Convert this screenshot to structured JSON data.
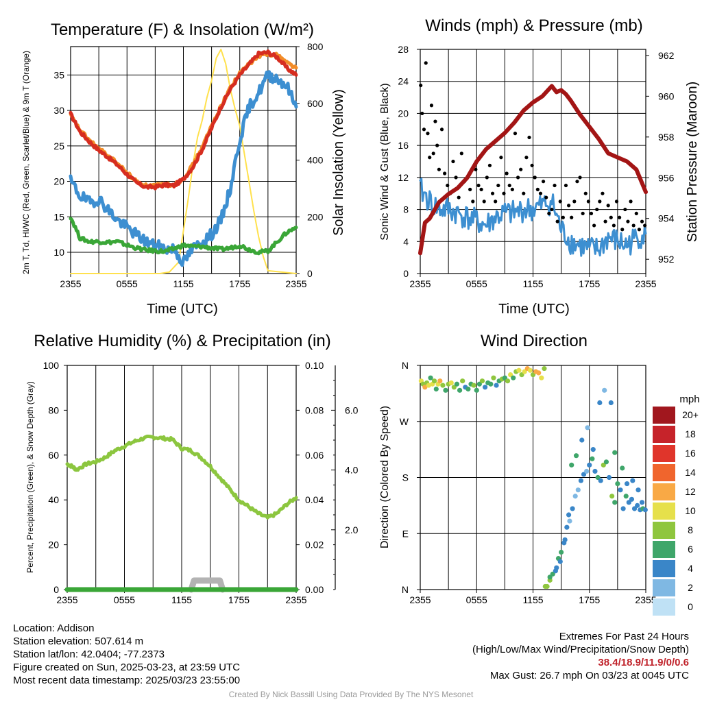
{
  "colors": {
    "red": "#d62d20",
    "orange": "#f28c28",
    "blue": "#3d8fd1",
    "green": "#3aa637",
    "yellow": "#ffe14d",
    "black": "#000000",
    "maroon": "#a31515",
    "rh_green": "#8cc63f",
    "gray": "#b3b3b3"
  },
  "speed_colorbar": {
    "unit": "mph",
    "labels": [
      "20+",
      "18",
      "16",
      "14",
      "12",
      "10",
      "8",
      "6",
      "4",
      "2",
      "0"
    ],
    "colors": [
      "#a1171e",
      "#c6232a",
      "#e0352b",
      "#f0652d",
      "#f9a945",
      "#e6e04b",
      "#8fc63e",
      "#3fa66a",
      "#3a86c8",
      "#7fb8e3",
      "#bfe1f5"
    ]
  },
  "chart_data": [
    {
      "type": "line",
      "title": "Temperature (F) & Insolation (W/m²)",
      "xlabel": "Time (UTC)",
      "ylabel": "2m T, Td, HI/WC (Red, Green, Scarlet/Blue) & 9m T (Orange)",
      "y2label": "Solar Insolation (Yellow)",
      "x_ticks": [
        "2355",
        "0555",
        "1155",
        "1755",
        "2355"
      ],
      "xlim": [
        0,
        24
      ],
      "ylim": [
        7,
        39
      ],
      "y2lim": [
        0,
        800
      ],
      "y_ticks": [
        10,
        15,
        20,
        25,
        30,
        35
      ],
      "y2_ticks": [
        0,
        200,
        400,
        600,
        800
      ],
      "grid": true,
      "series": [
        {
          "color_key": "red",
          "x": [
            0,
            1,
            2,
            3,
            4,
            5,
            6,
            7,
            8,
            9,
            10,
            11,
            12,
            13,
            14,
            15,
            16,
            17,
            18,
            19,
            20,
            21,
            22,
            23,
            24
          ],
          "y": [
            29.5,
            27.0,
            25.6,
            24.4,
            23.4,
            22.3,
            21.0,
            19.8,
            19.2,
            19.2,
            19.5,
            19.4,
            20.3,
            22.0,
            24.5,
            27.5,
            30.5,
            33.0,
            35.0,
            36.5,
            38.0,
            38.2,
            37.5,
            36.0,
            35.0
          ]
        },
        {
          "color_key": "orange",
          "x": [
            0,
            1,
            2,
            3,
            4,
            5,
            6,
            7,
            8,
            9,
            10,
            11,
            12,
            13,
            14,
            15,
            16,
            17,
            18,
            19,
            20,
            21,
            22,
            23,
            24
          ],
          "y": [
            29.3,
            27.2,
            25.8,
            24.6,
            23.6,
            22.5,
            21.2,
            20.0,
            19.4,
            19.4,
            19.6,
            19.5,
            20.4,
            22.3,
            24.8,
            27.8,
            30.6,
            33.2,
            35.2,
            36.6,
            37.6,
            38.0,
            37.8,
            36.8,
            36.0
          ]
        },
        {
          "color_key": "blue",
          "x": [
            0,
            1,
            2,
            3,
            4,
            5,
            6,
            7,
            8,
            9,
            10,
            11,
            12,
            13,
            14,
            15,
            16,
            17,
            18,
            19,
            20,
            21,
            22,
            23,
            24
          ],
          "y": [
            20.0,
            18.0,
            17.0,
            17.5,
            16.0,
            14.5,
            13.5,
            12.5,
            11.5,
            11.0,
            10.5,
            10.5,
            8.5,
            10.5,
            11.5,
            12.5,
            14.5,
            19.0,
            26.0,
            30.5,
            32.5,
            35.0,
            34.5,
            33.5,
            30.5
          ]
        },
        {
          "color_key": "green",
          "x": [
            0,
            1,
            2,
            3,
            4,
            5,
            6,
            7,
            8,
            9,
            10,
            11,
            12,
            13,
            14,
            15,
            16,
            17,
            18,
            19,
            20,
            21,
            22,
            23,
            24
          ],
          "y": [
            15.0,
            12.0,
            11.5,
            11.5,
            11.4,
            11.5,
            11.0,
            10.6,
            10.3,
            10.2,
            10.1,
            10.5,
            11.0,
            10.8,
            10.8,
            10.6,
            10.4,
            10.6,
            11.0,
            10.4,
            10.0,
            10.2,
            11.5,
            12.8,
            13.5
          ]
        },
        {
          "color_key": "yellow",
          "axis": "y2",
          "x": [
            0,
            9.5,
            10.5,
            11.5,
            12.0,
            12.5,
            13.0,
            13.5,
            14.0,
            14.5,
            15.0,
            15.5,
            16.0,
            16.5,
            17.0,
            17.5,
            18.0,
            18.5,
            19.0,
            19.5,
            20.0,
            20.5,
            21.0,
            24
          ],
          "y": [
            0,
            0,
            5,
            40,
            150,
            260,
            380,
            480,
            540,
            620,
            680,
            760,
            790,
            740,
            650,
            580,
            520,
            420,
            320,
            220,
            130,
            60,
            10,
            0
          ]
        }
      ]
    },
    {
      "type": "line",
      "title": "Winds (mph) & Pressure (mb)",
      "xlabel": "Time (UTC)",
      "ylabel": "Sonic Wind & Gust (Blue, Black)",
      "y2label": "Station Pressure (Maroon)",
      "x_ticks": [
        "2355",
        "0555",
        "1155",
        "1755",
        "2355"
      ],
      "xlim": [
        0,
        24
      ],
      "ylim": [
        0,
        28
      ],
      "y2lim": [
        951.3,
        962.3
      ],
      "y_ticks": [
        0,
        4,
        8,
        12,
        16,
        20,
        24,
        28
      ],
      "y2_ticks": [
        952,
        954,
        956,
        958,
        960,
        962
      ],
      "grid": true,
      "series": [
        {
          "color_key": "blue",
          "x": [
            0,
            1,
            2,
            3,
            4,
            5,
            6,
            7,
            8,
            9,
            10,
            11,
            12,
            13,
            14,
            15,
            16,
            17,
            18,
            19,
            20,
            21,
            22,
            23,
            24
          ],
          "y": [
            10.5,
            9.0,
            8.0,
            8.0,
            7.5,
            7.0,
            6.5,
            6.0,
            7.0,
            7.5,
            7.5,
            8.0,
            8.0,
            8.5,
            9.0,
            5.5,
            4.0,
            3.5,
            3.0,
            3.0,
            4.5,
            4.0,
            3.5,
            4.5,
            5.0
          ]
        },
        {
          "color_key": "maroon",
          "axis": "y2",
          "x": [
            0,
            0.5,
            1,
            2,
            3,
            4,
            5,
            6,
            7,
            8,
            9,
            10,
            11,
            12,
            13,
            14,
            14.5,
            15,
            15.5,
            16,
            17,
            18,
            19,
            20,
            21,
            22,
            23,
            24
          ],
          "y": [
            952.3,
            953.8,
            954.0,
            954.8,
            955.2,
            955.5,
            956.0,
            956.8,
            957.4,
            957.8,
            958.2,
            958.7,
            959.3,
            959.7,
            960.0,
            960.5,
            960.2,
            960.3,
            960.1,
            959.8,
            959.1,
            958.5,
            957.9,
            957.2,
            957.0,
            956.8,
            956.4,
            955.3
          ]
        }
      ],
      "scatter_gust": {
        "color_key": "black",
        "x": [
          0.05,
          0.2,
          0.4,
          0.6,
          0.8,
          1.0,
          1.2,
          1.4,
          1.6,
          1.8,
          2.0,
          2.3,
          2.6,
          2.9,
          3.2,
          3.5,
          3.8,
          4.1,
          4.4,
          4.7,
          5.0,
          5.3,
          5.6,
          5.9,
          6.2,
          6.5,
          6.8,
          7.1,
          7.4,
          7.7,
          8.0,
          8.3,
          8.6,
          8.9,
          9.2,
          9.5,
          9.8,
          10.1,
          10.4,
          10.7,
          11.0,
          11.3,
          11.6,
          11.9,
          12.2,
          12.5,
          12.8,
          13.1,
          13.4,
          13.7,
          14.0,
          14.3,
          14.6,
          14.9,
          15.2,
          15.5,
          15.8,
          16.1,
          16.4,
          16.7,
          17.0,
          17.3,
          17.6,
          17.9,
          18.2,
          18.5,
          18.8,
          19.1,
          19.4,
          19.7,
          20.0,
          20.3,
          20.6,
          20.9,
          21.2,
          21.5,
          21.8,
          22.1,
          22.4,
          22.7,
          23.0,
          23.3,
          23.6,
          23.9
        ],
        "y": [
          23.5,
          20.0,
          18.0,
          26.3,
          17.5,
          14.5,
          21.0,
          15.0,
          19.0,
          16.0,
          13.0,
          18.0,
          12.5,
          11.0,
          10.0,
          14.0,
          12.0,
          9.5,
          15.0,
          11.5,
          12.0,
          10.5,
          9.0,
          13.0,
          11.0,
          10.5,
          9.0,
          12.0,
          13.5,
          10.0,
          9.0,
          11.0,
          14.5,
          10.0,
          12.5,
          11.0,
          10.5,
          17.5,
          12.0,
          13.0,
          10.0,
          14.5,
          17.0,
          13.5,
          12.0,
          10.5,
          10.0,
          11.5,
          9.5,
          7.5,
          8.0,
          11.0,
          6.5,
          9.0,
          7.0,
          11.0,
          8.5,
          7.0,
          9.0,
          11.5,
          12.0,
          7.5,
          10.0,
          9.0,
          7.5,
          6.0,
          8.0,
          9.0,
          10.0,
          6.5,
          8.5,
          7.0,
          6.0,
          9.0,
          7.0,
          5.5,
          8.0,
          6.5,
          9.0,
          6.0,
          7.5,
          5.5,
          6.5,
          6.0
        ]
      }
    },
    {
      "type": "line",
      "title": "Relative Humidity (%) & Precipitation (in)",
      "ylabel": "Percent, Precipitation (Green), & Snow Depth (Gray)",
      "x_ticks": [
        "2355",
        "0555",
        "1155",
        "1755",
        "2355"
      ],
      "xlim": [
        0,
        24
      ],
      "ylim": [
        0,
        100
      ],
      "y2lim": [
        0,
        0.1
      ],
      "y3lim": [
        0,
        7.5
      ],
      "y_ticks": [
        0,
        20,
        40,
        60,
        80,
        100
      ],
      "y2_ticks": [
        "0.00",
        "0.02",
        "0.04",
        "0.06",
        "0.08",
        "0.10"
      ],
      "y3_ticks": [
        "2.0",
        "4.0",
        "6.0"
      ],
      "grid": true,
      "series": [
        {
          "name": "",
          "color_key": "rh_green",
          "x": [
            0,
            0.5,
            1,
            2,
            3,
            4,
            5,
            6,
            7,
            8,
            9,
            10,
            11,
            12,
            13,
            14,
            15,
            16,
            17,
            18,
            19,
            20,
            21,
            22,
            23,
            24
          ],
          "y": [
            56.0,
            55.0,
            53.5,
            56.0,
            57.0,
            59.0,
            62.0,
            64.0,
            66.0,
            67.5,
            68.0,
            67.5,
            67.0,
            63.0,
            62.0,
            59.0,
            55.0,
            50.0,
            45.0,
            40.0,
            37.0,
            34.0,
            32.0,
            34.0,
            38.0,
            41.0
          ]
        },
        {
          "color_key": "green",
          "x": [
            0,
            24
          ],
          "y": [
            0,
            0
          ]
        },
        {
          "color_key": "gray",
          "x": [
            13.0,
            13.3,
            16.0,
            16.3
          ],
          "y": [
            0.0,
            0.3,
            0.3,
            0.0
          ]
        }
      ]
    },
    {
      "type": "scatter",
      "title": "Wind Direction",
      "ylabel": "Direction (Colored By Speed)",
      "x_ticks": [
        "2355",
        "0555",
        "1155",
        "1755",
        "2355"
      ],
      "y_ticks": [
        "N",
        "E",
        "S",
        "W",
        "N"
      ],
      "xlim": [
        0,
        24
      ],
      "ylim": [
        0,
        360
      ],
      "grid": true,
      "points": {
        "x": [
          0.1,
          0.3,
          0.5,
          0.7,
          0.9,
          1.1,
          1.3,
          1.5,
          1.7,
          1.9,
          2.1,
          2.4,
          2.7,
          3.0,
          3.3,
          3.6,
          3.9,
          4.2,
          4.5,
          4.8,
          5.1,
          5.4,
          5.7,
          6.0,
          6.3,
          6.6,
          6.9,
          7.2,
          7.5,
          7.8,
          8.1,
          8.4,
          8.7,
          9.0,
          9.3,
          9.6,
          9.9,
          10.2,
          10.5,
          10.8,
          11.1,
          11.4,
          11.7,
          12.0,
          12.3,
          12.6,
          12.9,
          13.2,
          13.5,
          13.8,
          14.1,
          14.4,
          14.7,
          15.0,
          15.3,
          15.6,
          15.9,
          16.2,
          16.5,
          16.8,
          17.1,
          17.4,
          17.7,
          18.0,
          18.3,
          18.6,
          18.9,
          19.2,
          19.5,
          19.8,
          20.1,
          20.4,
          20.7,
          21.0,
          21.3,
          21.6,
          21.9,
          22.2,
          22.5,
          22.8,
          23.1,
          23.4,
          23.7,
          23.95,
          13.3,
          13.8,
          14.5,
          14.9,
          15.4,
          15.8,
          16.1,
          16.6,
          17.2,
          17.8,
          18.4,
          19.1,
          19.6,
          20.3,
          20.7,
          21.5,
          22.0,
          22.6,
          23.2,
          23.6
        ],
        "y": [
          335,
          330,
          325,
          332,
          328,
          340,
          330,
          335,
          322,
          330,
          335,
          328,
          320,
          330,
          332,
          325,
          330,
          320,
          335,
          325,
          322,
          330,
          328,
          320,
          330,
          335,
          325,
          332,
          330,
          340,
          328,
          335,
          338,
          340,
          335,
          345,
          340,
          350,
          352,
          345,
          350,
          355,
          352,
          345,
          350,
          348,
          340,
          355,
          5,
          15,
          25,
          30,
          50,
          60,
          75,
          100,
          110,
          130,
          150,
          160,
          175,
          185,
          190,
          200,
          210,
          190,
          180,
          175,
          200,
          205,
          180,
          150,
          140,
          170,
          160,
          130,
          150,
          140,
          145,
          130,
          135,
          128,
          130,
          128,
          5,
          20,
          35,
          45,
          80,
          120,
          200,
          215,
          240,
          260,
          225,
          300,
          320,
          300,
          220,
          195,
          170,
          175,
          160,
          140
        ],
        "speed": [
          10,
          8,
          11,
          7,
          9,
          6,
          10,
          8,
          5,
          9,
          11,
          7,
          6,
          8,
          10,
          7,
          5,
          6,
          8,
          4,
          5,
          6,
          7,
          5,
          6,
          8,
          4,
          5,
          6,
          7,
          4,
          6,
          8,
          5,
          7,
          9,
          6,
          8,
          10,
          7,
          9,
          11,
          10,
          8,
          12,
          11,
          9,
          8,
          7,
          8,
          6,
          4,
          5,
          6,
          3,
          4,
          2,
          3,
          1,
          2,
          3,
          4,
          2,
          3,
          5,
          4,
          6,
          3,
          7,
          5,
          4,
          8,
          5,
          6,
          4,
          3,
          5,
          4,
          3,
          4,
          3,
          4,
          5,
          4,
          7,
          5,
          4,
          3,
          4,
          3,
          6,
          5,
          3,
          2,
          4,
          3,
          2,
          4,
          5,
          6,
          4,
          3,
          4,
          3
        ]
      }
    }
  ],
  "info_left": {
    "location": "Location: Addison",
    "elevation": "Station elevation: 507.614 m",
    "latlon": "Station lat/lon: 42.0404; -77.2373",
    "created": "Figure created on Sun, 2025-03-23, at 23:59 UTC",
    "recent": "Most recent data timestamp: 2025/03/23 23:55:00"
  },
  "info_right": {
    "title": "Extremes For Past 24 Hours",
    "subtitle": "(High/Low/Max Wind/Precipitation/Snow Depth)",
    "values": "38.4/18.9/11.9/0/0.6",
    "gust": "Max Gust: 26.7 mph On 03/23 at 0045 UTC"
  },
  "credit": "Created By Nick Bassill Using Data Provided By The NYS Mesonet"
}
